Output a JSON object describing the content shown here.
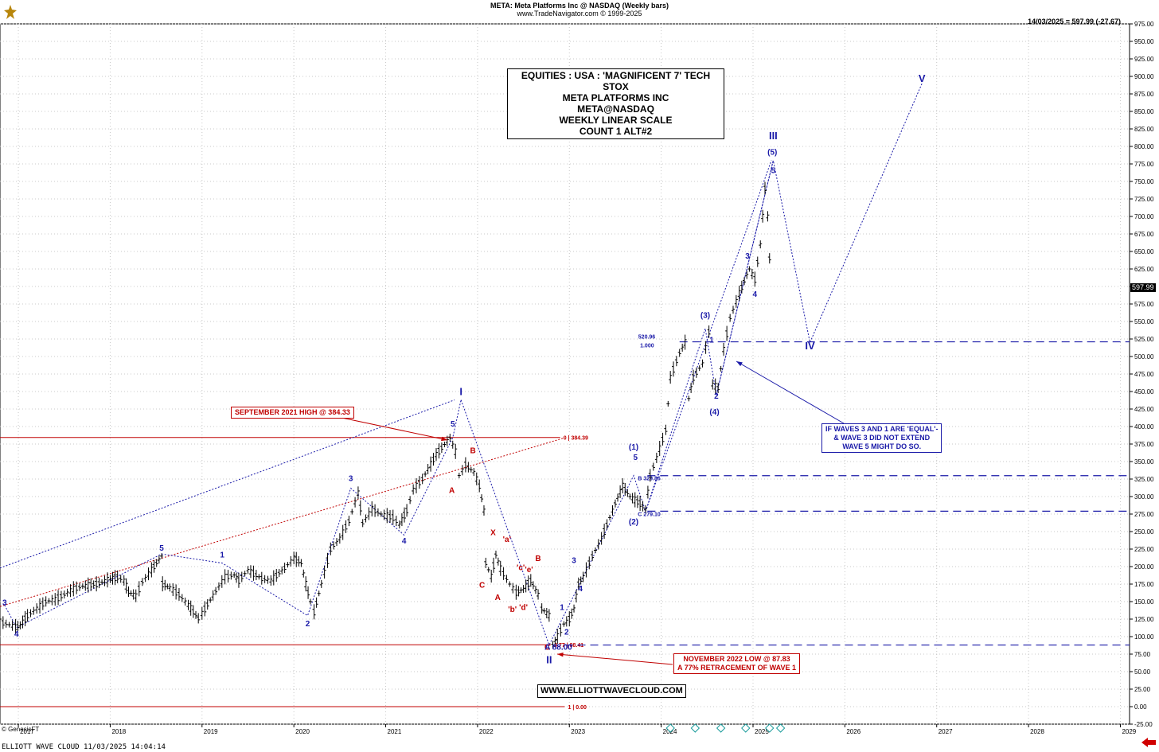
{
  "header": {
    "title": "META:  Meta Platforms Inc @ NASDAQ  (Weekly bars)",
    "copyright": "www.TradeNavigator.com © 1999-2025",
    "readout": "14/03/2025 = 597.99 (-27.67)"
  },
  "infobox": {
    "lines": [
      "EQUITIES : USA : 'MAGNIFICENT 7' TECH STOX",
      "META PLATFORMS INC",
      "META@NASDAQ",
      "WEEKLY LINEAR SCALE",
      "COUNT 1 ALT#2"
    ]
  },
  "notes": {
    "sep2021": "SEPTEMBER 2021 HIGH @ 384.33",
    "nov2022_1": "NOVEMBER 2022 LOW @ 87.83",
    "nov2022_2": "A 77% RETRACEMENT OF WAVE 1",
    "w3_1": "IF WAVES 3 AND 1 ARE 'EQUAL'-",
    "w3_2": "& WAVE 3 DID NOT EXTEND",
    "w3_3": "WAVE 5 MIGHT DO SO."
  },
  "website": "WWW.ELLIOTTWAVECLOUD.COM",
  "footer": "ELLIOTT WAVE CLOUD   11/03/2025 14:04:14",
  "genesis": "© GenesisFT",
  "last_price_tag": "597.99",
  "colors": {
    "blue": "#1a1aa8",
    "red": "#c00000",
    "bars": "#000000",
    "grid": "#c8c8c8"
  },
  "chart_data": {
    "type": "line",
    "title": "META:  Meta Platforms Inc @ NASDAQ  (Weekly bars)",
    "y_axis": {
      "side": "right",
      "ylim": [
        -25,
        975
      ],
      "ticks": [
        975,
        950,
        925,
        900,
        875,
        850,
        825,
        800,
        775,
        750,
        725,
        700,
        675,
        650,
        625,
        600,
        575,
        550,
        525,
        500,
        475,
        450,
        425,
        400,
        375,
        350,
        325,
        300,
        275,
        250,
        225,
        200,
        175,
        150,
        125,
        100,
        75,
        50,
        25,
        0,
        -25
      ],
      "tick_labels": [
        "975.00",
        "950.00",
        "925.00",
        "900.00",
        "875.00",
        "850.00",
        "825.00",
        "800.00",
        "775.00",
        "750.00",
        "725.00",
        "700.00",
        "675.00",
        "650.00",
        "625.00",
        "600.00",
        "575.00",
        "550.00",
        "525.00",
        "500.00",
        "475.00",
        "450.00",
        "425.00",
        "400.00",
        "375.00",
        "350.00",
        "325.00",
        "300.00",
        "275.00",
        "250.00",
        "225.00",
        "200.00",
        "175.00",
        "150.00",
        "125.00",
        "100.00",
        "75.00",
        "50.00",
        "25.00",
        "0.00",
        "-25.00"
      ]
    },
    "x_axis": {
      "xlim": [
        2016.8,
        2029.1
      ],
      "ticks": [
        2017,
        2018,
        2019,
        2020,
        2021,
        2022,
        2023,
        2024,
        2025,
        2026,
        2027,
        2028,
        2029
      ],
      "tick_labels": [
        "2017",
        "2018",
        "2019",
        "2020",
        "2021",
        "2022",
        "2023",
        "2024",
        "2025",
        "2026",
        "2027",
        "2028",
        "2029"
      ]
    },
    "grid": true,
    "price_path": [
      [
        2016.8,
        121
      ],
      [
        2016.9,
        117
      ],
      [
        2016.97,
        114
      ],
      [
        2017.02,
        116
      ],
      [
        2017.1,
        130
      ],
      [
        2017.2,
        140
      ],
      [
        2017.3,
        150
      ],
      [
        2017.4,
        153
      ],
      [
        2017.5,
        160
      ],
      [
        2017.6,
        168
      ],
      [
        2017.7,
        172
      ],
      [
        2017.85,
        175
      ],
      [
        2018.0,
        182
      ],
      [
        2018.08,
        185
      ],
      [
        2018.15,
        180
      ],
      [
        2018.2,
        164
      ],
      [
        2018.28,
        158
      ],
      [
        2018.35,
        178
      ],
      [
        2018.45,
        195
      ],
      [
        2018.56,
        215
      ],
      [
        2018.57,
        175
      ],
      [
        2018.65,
        170
      ],
      [
        2018.75,
        160
      ],
      [
        2018.85,
        145
      ],
      [
        2018.96,
        126
      ],
      [
        2019.0,
        133
      ],
      [
        2019.15,
        165
      ],
      [
        2019.25,
        185
      ],
      [
        2019.35,
        188
      ],
      [
        2019.4,
        180
      ],
      [
        2019.5,
        195
      ],
      [
        2019.65,
        183
      ],
      [
        2019.75,
        180
      ],
      [
        2019.9,
        198
      ],
      [
        2020.0,
        212
      ],
      [
        2020.08,
        205
      ],
      [
        2020.13,
        175
      ],
      [
        2020.18,
        150
      ],
      [
        2020.22,
        135
      ],
      [
        2020.3,
        175
      ],
      [
        2020.4,
        225
      ],
      [
        2020.5,
        240
      ],
      [
        2020.6,
        265
      ],
      [
        2020.7,
        305
      ],
      [
        2020.75,
        262
      ],
      [
        2020.85,
        282
      ],
      [
        2020.95,
        275
      ],
      [
        2021.08,
        270
      ],
      [
        2021.15,
        260
      ],
      [
        2021.23,
        280
      ],
      [
        2021.3,
        310
      ],
      [
        2021.4,
        325
      ],
      [
        2021.55,
        360
      ],
      [
        2021.7,
        384
      ],
      [
        2021.76,
        364
      ],
      [
        2021.8,
        330
      ],
      [
        2021.87,
        345
      ],
      [
        2021.96,
        335
      ],
      [
        2022.02,
        315
      ],
      [
        2022.07,
        280
      ],
      [
        2022.09,
        205
      ],
      [
        2022.15,
        186
      ],
      [
        2022.2,
        217
      ],
      [
        2022.25,
        197
      ],
      [
        2022.35,
        175
      ],
      [
        2022.42,
        163
      ],
      [
        2022.5,
        168
      ],
      [
        2022.58,
        180
      ],
      [
        2022.66,
        160
      ],
      [
        2022.7,
        140
      ],
      [
        2022.78,
        130
      ],
      [
        2022.82,
        88
      ],
      [
        2022.87,
        100
      ],
      [
        2022.94,
        118
      ],
      [
        2023.0,
        125
      ],
      [
        2023.05,
        140
      ],
      [
        2023.1,
        175
      ],
      [
        2023.15,
        185
      ],
      [
        2023.25,
        215
      ],
      [
        2023.35,
        240
      ],
      [
        2023.5,
        290
      ],
      [
        2023.58,
        315
      ],
      [
        2023.66,
        300
      ],
      [
        2023.77,
        290
      ],
      [
        2023.83,
        282
      ],
      [
        2023.88,
        330
      ],
      [
        2023.95,
        355
      ],
      [
        2024.05,
        395
      ],
      [
        2024.1,
        470
      ],
      [
        2024.2,
        505
      ],
      [
        2024.26,
        520
      ],
      [
        2024.3,
        440
      ],
      [
        2024.35,
        470
      ],
      [
        2024.45,
        490
      ],
      [
        2024.52,
        535
      ],
      [
        2024.56,
        460
      ],
      [
        2024.62,
        455
      ],
      [
        2024.68,
        510
      ],
      [
        2024.75,
        555
      ],
      [
        2024.85,
        590
      ],
      [
        2024.96,
        625
      ],
      [
        2025.02,
        610
      ],
      [
        2025.08,
        660
      ],
      [
        2025.13,
        740
      ],
      [
        2025.16,
        700
      ],
      [
        2025.18,
        640
      ],
      [
        2025.21,
        597
      ]
    ],
    "horizontal_levels": [
      {
        "value": 384.39,
        "label": "0 | 384.39",
        "color": "red"
      },
      {
        "value": 88.41,
        "label": "0.77 | 88.41",
        "color": "red"
      },
      {
        "value": 0,
        "label": "1 | 0.00",
        "color": "red"
      },
      {
        "value": 520.96,
        "label": "520.96 / 1.000",
        "color": "blue"
      },
      {
        "value": 329.86,
        "label": "B 329.86",
        "color": "blue"
      },
      {
        "value": 279.1,
        "label": "C 279.10",
        "color": "blue"
      }
    ],
    "wave_labels": [
      {
        "text": "3",
        "x": 2016.85,
        "y": 145,
        "color": "blue"
      },
      {
        "text": "4",
        "x": 2016.98,
        "y": 100,
        "color": "blue"
      },
      {
        "text": "5",
        "x": 2018.56,
        "y": 223,
        "color": "blue"
      },
      {
        "text": "1",
        "x": 2019.22,
        "y": 213,
        "color": "blue"
      },
      {
        "text": "2",
        "x": 2020.15,
        "y": 115,
        "color": "blue"
      },
      {
        "text": "3",
        "x": 2020.62,
        "y": 322,
        "color": "blue"
      },
      {
        "text": "4",
        "x": 2021.2,
        "y": 233,
        "color": "blue"
      },
      {
        "text": "5",
        "x": 2021.73,
        "y": 400,
        "color": "blue"
      },
      {
        "text": "I",
        "x": 2021.82,
        "y": 445,
        "color": "blue"
      },
      {
        "text": "A",
        "x": 2021.72,
        "y": 305,
        "color": "red"
      },
      {
        "text": "B",
        "x": 2021.95,
        "y": 362,
        "color": "red"
      },
      {
        "text": "X",
        "x": 2022.17,
        "y": 245,
        "color": "red"
      },
      {
        "text": "C",
        "x": 2022.05,
        "y": 170,
        "color": "red"
      },
      {
        "text": "A",
        "x": 2022.22,
        "y": 152,
        "color": "red"
      },
      {
        "text": "'a'",
        "x": 2022.32,
        "y": 235,
        "color": "red"
      },
      {
        "text": "'b'",
        "x": 2022.38,
        "y": 135,
        "color": "red"
      },
      {
        "text": "'c'",
        "x": 2022.47,
        "y": 195,
        "color": "red"
      },
      {
        "text": "'d'",
        "x": 2022.5,
        "y": 138,
        "color": "red"
      },
      {
        "text": "'e'",
        "x": 2022.56,
        "y": 192,
        "color": "red"
      },
      {
        "text": "B",
        "x": 2022.66,
        "y": 208,
        "color": "red"
      },
      {
        "text": "C",
        "x": 2022.76,
        "y": 81,
        "color": "red"
      },
      {
        "text": "A 88.00",
        "x": 2022.88,
        "y": 81,
        "color": "blue"
      },
      {
        "text": "II",
        "x": 2022.78,
        "y": 62,
        "color": "blue"
      },
      {
        "text": "1",
        "x": 2022.92,
        "y": 138,
        "color": "blue"
      },
      {
        "text": "2",
        "x": 2022.97,
        "y": 103,
        "color": "blue"
      },
      {
        "text": "3",
        "x": 2023.05,
        "y": 205,
        "color": "blue"
      },
      {
        "text": "4",
        "x": 2023.12,
        "y": 165,
        "color": "blue"
      },
      {
        "text": "(1)",
        "x": 2023.7,
        "y": 367,
        "color": "blue"
      },
      {
        "text": "5",
        "x": 2023.72,
        "y": 352,
        "color": "blue"
      },
      {
        "text": "(2)",
        "x": 2023.7,
        "y": 260,
        "color": "blue"
      },
      {
        "text": "(3)",
        "x": 2024.48,
        "y": 555,
        "color": "blue"
      },
      {
        "text": "1",
        "x": 2024.55,
        "y": 520,
        "color": "blue"
      },
      {
        "text": "2",
        "x": 2024.6,
        "y": 440,
        "color": "blue"
      },
      {
        "text": "(4)",
        "x": 2024.58,
        "y": 417,
        "color": "blue"
      },
      {
        "text": "3",
        "x": 2024.94,
        "y": 640,
        "color": "blue"
      },
      {
        "text": "4",
        "x": 2025.02,
        "y": 585,
        "color": "blue"
      },
      {
        "text": "III",
        "x": 2025.22,
        "y": 810,
        "color": "blue"
      },
      {
        "text": "(5)",
        "x": 2025.21,
        "y": 788,
        "color": "blue"
      },
      {
        "text": "5",
        "x": 2025.22,
        "y": 762,
        "color": "blue"
      },
      {
        "text": "IV",
        "x": 2025.62,
        "y": 510,
        "color": "blue"
      },
      {
        "text": "V",
        "x": 2026.84,
        "y": 892,
        "color": "blue"
      }
    ]
  }
}
